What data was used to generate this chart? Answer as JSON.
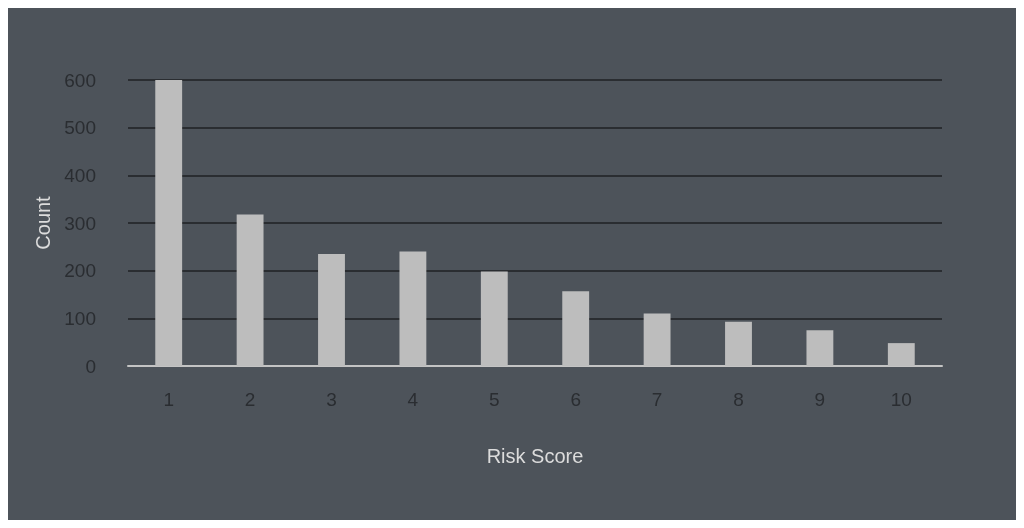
{
  "chart_data": {
    "type": "bar",
    "xlabel": "Risk Score",
    "ylabel": "Count",
    "categories": [
      "1",
      "2",
      "3",
      "4",
      "5",
      "6",
      "7",
      "8",
      "9",
      "10"
    ],
    "values": [
      600,
      318,
      235,
      240,
      198,
      157,
      110,
      93,
      75,
      48
    ],
    "color": "#bdbdbd",
    "ylim": [
      0,
      600
    ],
    "yticks": [
      0,
      100,
      200,
      300,
      400,
      500,
      600
    ],
    "grid": "y"
  }
}
